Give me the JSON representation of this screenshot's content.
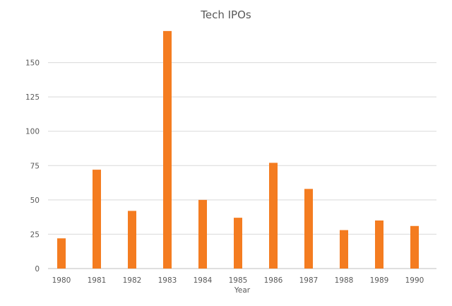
{
  "chart_data": {
    "type": "bar",
    "title": "Tech IPOs",
    "xlabel": "Year",
    "ylabel": "",
    "categories": [
      "1980",
      "1981",
      "1982",
      "1983",
      "1984",
      "1985",
      "1986",
      "1987",
      "1988",
      "1989",
      "1990"
    ],
    "series": [
      {
        "values": [
          22,
          72,
          42,
          173,
          50,
          37,
          77,
          58,
          28,
          35,
          31
        ],
        "color": "#f47c20"
      }
    ],
    "ylim": [
      0,
      175
    ],
    "yticks": [
      "0",
      "25",
      "50",
      "75",
      "100",
      "125",
      "150"
    ],
    "grid": true,
    "legend": "none"
  }
}
